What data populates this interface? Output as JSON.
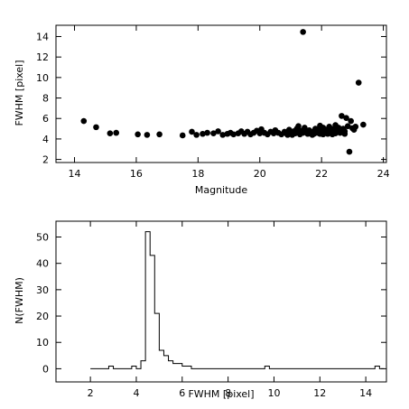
{
  "chart_data": [
    {
      "type": "scatter",
      "title": "",
      "xlabel": "Magnitude",
      "ylabel": "FWHM [pixel]",
      "xlim": [
        13.4,
        24.1
      ],
      "ylim": [
        1.7,
        15.1
      ],
      "xticks": [
        14,
        16,
        18,
        20,
        22,
        24
      ],
      "yticks": [
        2,
        4,
        6,
        8,
        10,
        12,
        14
      ],
      "xticklabels": [
        "14",
        "16",
        "18",
        "20",
        "22",
        "24"
      ],
      "yticklabels": [
        "2",
        "4",
        "6",
        "8",
        "10",
        "12",
        "14"
      ],
      "grid": false,
      "points": [
        {
          "x": 14.3,
          "y": 5.75
        },
        {
          "x": 14.7,
          "y": 5.15
        },
        {
          "x": 15.15,
          "y": 4.55
        },
        {
          "x": 15.35,
          "y": 4.6
        },
        {
          "x": 16.05,
          "y": 4.45
        },
        {
          "x": 16.35,
          "y": 4.4
        },
        {
          "x": 16.75,
          "y": 4.45
        },
        {
          "x": 17.5,
          "y": 4.35
        },
        {
          "x": 17.8,
          "y": 4.7
        },
        {
          "x": 17.95,
          "y": 4.4
        },
        {
          "x": 18.15,
          "y": 4.5
        },
        {
          "x": 18.3,
          "y": 4.6
        },
        {
          "x": 18.5,
          "y": 4.55
        },
        {
          "x": 18.65,
          "y": 4.75
        },
        {
          "x": 18.8,
          "y": 4.4
        },
        {
          "x": 18.95,
          "y": 4.5
        },
        {
          "x": 19.05,
          "y": 4.6
        },
        {
          "x": 19.15,
          "y": 4.45
        },
        {
          "x": 19.3,
          "y": 4.55
        },
        {
          "x": 19.4,
          "y": 4.75
        },
        {
          "x": 19.5,
          "y": 4.5
        },
        {
          "x": 19.6,
          "y": 4.7
        },
        {
          "x": 19.7,
          "y": 4.45
        },
        {
          "x": 19.8,
          "y": 4.6
        },
        {
          "x": 19.9,
          "y": 4.8
        },
        {
          "x": 20.0,
          "y": 4.55
        },
        {
          "x": 20.05,
          "y": 4.95
        },
        {
          "x": 20.15,
          "y": 4.6
        },
        {
          "x": 20.25,
          "y": 4.45
        },
        {
          "x": 20.35,
          "y": 4.7
        },
        {
          "x": 20.45,
          "y": 4.55
        },
        {
          "x": 20.5,
          "y": 4.85
        },
        {
          "x": 20.6,
          "y": 4.6
        },
        {
          "x": 20.7,
          "y": 4.45
        },
        {
          "x": 20.8,
          "y": 4.7
        },
        {
          "x": 20.85,
          "y": 4.55
        },
        {
          "x": 20.95,
          "y": 4.9
        },
        {
          "x": 21.0,
          "y": 4.6
        },
        {
          "x": 21.05,
          "y": 4.4
        },
        {
          "x": 21.1,
          "y": 4.75
        },
        {
          "x": 21.15,
          "y": 4.55
        },
        {
          "x": 21.2,
          "y": 5.0
        },
        {
          "x": 21.25,
          "y": 4.65
        },
        {
          "x": 21.3,
          "y": 4.45
        },
        {
          "x": 21.35,
          "y": 4.8
        },
        {
          "x": 21.4,
          "y": 4.6
        },
        {
          "x": 21.45,
          "y": 5.1
        },
        {
          "x": 21.5,
          "y": 4.7
        },
        {
          "x": 21.55,
          "y": 4.5
        },
        {
          "x": 21.6,
          "y": 4.85
        },
        {
          "x": 21.65,
          "y": 4.65
        },
        {
          "x": 21.7,
          "y": 4.4
        },
        {
          "x": 21.75,
          "y": 4.75
        },
        {
          "x": 21.8,
          "y": 5.0
        },
        {
          "x": 21.85,
          "y": 4.6
        },
        {
          "x": 21.9,
          "y": 4.85
        },
        {
          "x": 21.95,
          "y": 4.5
        },
        {
          "x": 22.0,
          "y": 4.7
        },
        {
          "x": 22.05,
          "y": 5.1
        },
        {
          "x": 22.1,
          "y": 4.6
        },
        {
          "x": 22.15,
          "y": 4.9
        },
        {
          "x": 22.2,
          "y": 4.5
        },
        {
          "x": 22.25,
          "y": 5.2
        },
        {
          "x": 22.3,
          "y": 4.75
        },
        {
          "x": 22.35,
          "y": 4.45
        },
        {
          "x": 22.4,
          "y": 5.0
        },
        {
          "x": 22.45,
          "y": 5.35
        },
        {
          "x": 22.5,
          "y": 4.7
        },
        {
          "x": 22.55,
          "y": 5.1
        },
        {
          "x": 22.6,
          "y": 4.6
        },
        {
          "x": 22.65,
          "y": 6.25
        },
        {
          "x": 22.7,
          "y": 5.0
        },
        {
          "x": 22.75,
          "y": 4.75
        },
        {
          "x": 22.8,
          "y": 6.05
        },
        {
          "x": 22.85,
          "y": 5.25
        },
        {
          "x": 22.9,
          "y": 2.75
        },
        {
          "x": 22.95,
          "y": 5.75
        },
        {
          "x": 23.0,
          "y": 5.05
        },
        {
          "x": 23.05,
          "y": 4.9
        },
        {
          "x": 23.1,
          "y": 5.2
        },
        {
          "x": 23.2,
          "y": 9.5
        },
        {
          "x": 23.35,
          "y": 5.4
        },
        {
          "x": 21.4,
          "y": 14.45
        },
        {
          "x": 20.9,
          "y": 4.4
        },
        {
          "x": 21.75,
          "y": 4.5
        },
        {
          "x": 22.05,
          "y": 4.45
        },
        {
          "x": 22.45,
          "y": 4.55
        },
        {
          "x": 22.75,
          "y": 4.5
        },
        {
          "x": 21.25,
          "y": 5.25
        },
        {
          "x": 21.95,
          "y": 5.3
        }
      ]
    },
    {
      "type": "step",
      "title": "",
      "xlabel": "FWHM [pixel]",
      "ylabel": "N(FWHM)",
      "xlim": [
        0.5,
        14.9
      ],
      "ylim": [
        -5,
        56
      ],
      "xticks": [
        2,
        4,
        6,
        8,
        10,
        12,
        14
      ],
      "yticks": [
        0,
        10,
        20,
        30,
        40,
        50
      ],
      "xticklabels": [
        "2",
        "4",
        "6",
        "8",
        "10",
        "12",
        "14"
      ],
      "yticklabels": [
        "0",
        "10",
        "20",
        "30",
        "40",
        "50"
      ],
      "grid": false,
      "bin_width": 0.2,
      "bins": [
        {
          "x": 2.0,
          "count": 0
        },
        {
          "x": 2.8,
          "count": 1
        },
        {
          "x": 3.0,
          "count": 0
        },
        {
          "x": 3.8,
          "count": 1
        },
        {
          "x": 4.0,
          "count": 0
        },
        {
          "x": 4.2,
          "count": 3
        },
        {
          "x": 4.4,
          "count": 52
        },
        {
          "x": 4.6,
          "count": 43
        },
        {
          "x": 4.8,
          "count": 21
        },
        {
          "x": 5.0,
          "count": 7
        },
        {
          "x": 5.2,
          "count": 5
        },
        {
          "x": 5.4,
          "count": 3
        },
        {
          "x": 5.6,
          "count": 2
        },
        {
          "x": 5.8,
          "count": 2
        },
        {
          "x": 6.0,
          "count": 1
        },
        {
          "x": 6.2,
          "count": 1
        },
        {
          "x": 6.4,
          "count": 0
        },
        {
          "x": 9.6,
          "count": 1
        },
        {
          "x": 9.8,
          "count": 0
        },
        {
          "x": 14.4,
          "count": 1
        },
        {
          "x": 14.6,
          "count": 0
        }
      ]
    }
  ]
}
